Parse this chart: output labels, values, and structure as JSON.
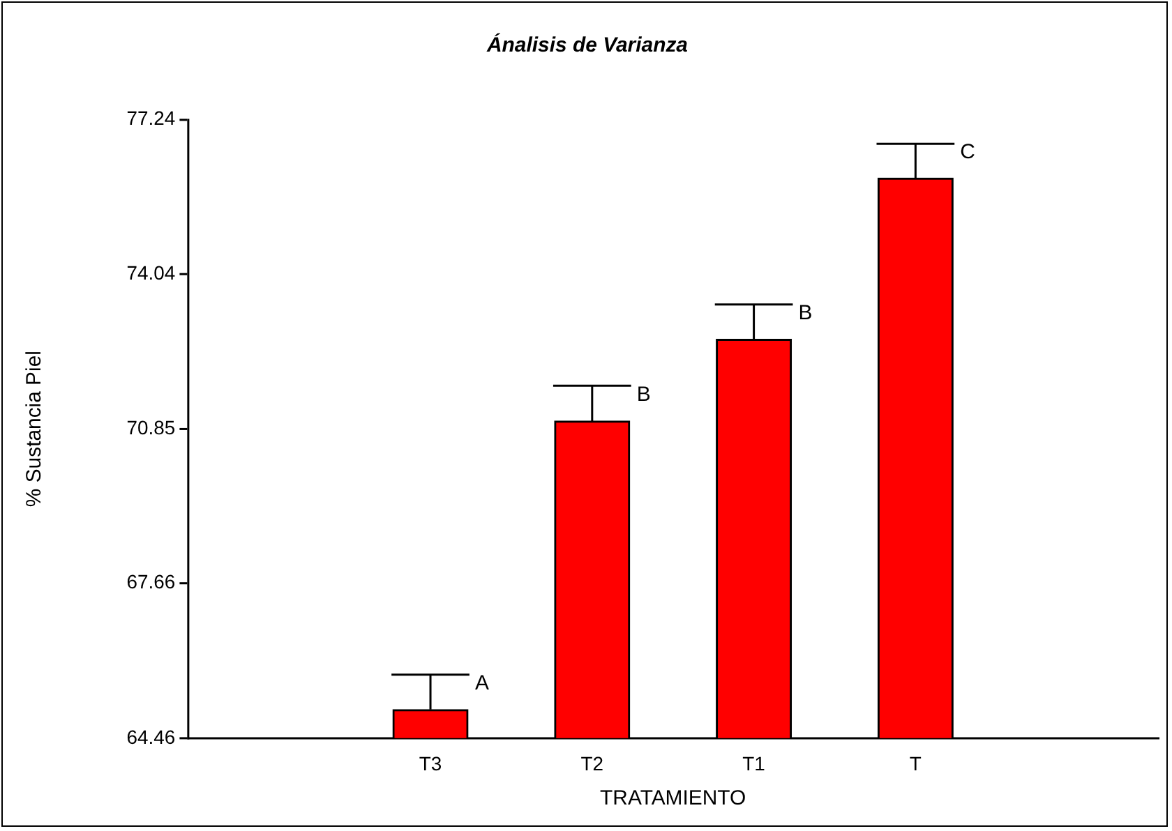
{
  "chart_data": {
    "type": "bar",
    "title": "Ánalisis de Varianza",
    "xlabel": "TRATAMIENTO",
    "ylabel": "% Sustancia Piel",
    "categories": [
      "T3",
      "T2",
      "T1",
      "T"
    ],
    "values": [
      65.05,
      71.01,
      72.7,
      76.03
    ],
    "errors": [
      [
        65.05,
        65.77
      ],
      [
        71.01,
        71.74
      ],
      [
        72.7,
        73.42
      ],
      [
        76.03,
        76.74
      ]
    ],
    "color": "#ff0000",
    "ylim": [
      64.46,
      77.24
    ],
    "yticks": [
      64.46,
      67.66,
      70.85,
      74.04,
      77.24
    ],
    "annotations": [
      {
        "text": "A",
        "x": "T3",
        "y": 65.77
      },
      {
        "text": "B",
        "x": "T2",
        "y": 71.74
      },
      {
        "text": "B",
        "x": "T1",
        "y": 73.42
      },
      {
        "text": "C",
        "x": "T",
        "y": 76.74
      }
    ],
    "grid": false,
    "legend": false
  }
}
